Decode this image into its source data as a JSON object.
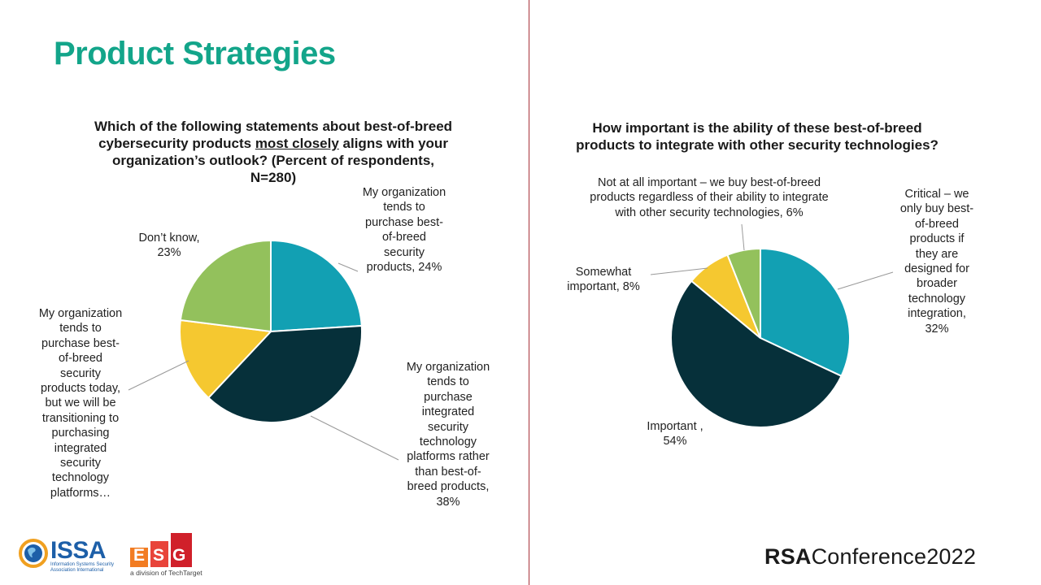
{
  "slide": {
    "title": "Product Strategies"
  },
  "chart_data": [
    {
      "type": "pie",
      "title_parts": [
        "Which of the following statements about best-of-breed cybersecurity products ",
        "most closely",
        " aligns with your organization’s outlook? (Percent of respondents, N=280)"
      ],
      "slices": [
        {
          "label": "My organization tends to purchase best-of-breed security products, 24%",
          "value": 24,
          "color": "#12a0b3"
        },
        {
          "label": "My organization tends to purchase integrated security technology platforms rather than best-of-breed products, 38%",
          "value": 38,
          "color": "#06303a"
        },
        {
          "label": "My organization tends to purchase best-of-breed security products today, but we will be transitioning to purchasing integrated security technology platforms…",
          "value": 15,
          "color": "#f5c830"
        },
        {
          "label": "Don’t know, 23%",
          "value": 23,
          "color": "#93c15c"
        }
      ]
    },
    {
      "type": "pie",
      "title": "How important is the ability of these best-of-breed products to integrate with other security technologies?",
      "slices": [
        {
          "label": "Critical – we only buy best-of-breed products if they are designed for broader technology integration, 32%",
          "value": 32,
          "color": "#12a0b3"
        },
        {
          "label": "Important , 54%",
          "value": 54,
          "color": "#06303a"
        },
        {
          "label": "Somewhat important, 8%",
          "value": 8,
          "color": "#f5c830"
        },
        {
          "label": "Not at all important – we buy best-of-breed products regardless of their ability to integrate with other security technologies, 6%",
          "value": 6,
          "color": "#93c15c"
        }
      ]
    }
  ],
  "labels_display": {
    "c1": [
      "My organization\ntends to\npurchase best-\nof-breed\nsecurity\nproducts, 24%",
      "My organization\ntends to\npurchase\nintegrated\nsecurity\ntechnology\nplatforms rather\nthan best-of-\nbreed products,\n38%",
      "My organization\ntends to\npurchase best-\nof-breed\nsecurity\nproducts today,\nbut we will be\ntransitioning to\npurchasing\nintegrated\nsecurity\ntechnology\nplatforms…",
      "Don’t know,\n23%"
    ],
    "c2": [
      "Critical – we\nonly buy best-\nof-breed\nproducts if\nthey are\ndesigned for\nbroader\ntechnology\nintegration,\n32%",
      "Important ,\n54%",
      "Somewhat\nimportant, 8%",
      "Not at all important – we buy best-of-breed\nproducts regardless of their ability to integrate\nwith other security technologies, 6%"
    ]
  },
  "footer": {
    "issa_logo_text": "ISSA",
    "issa_subtext": "Information Systems Security Association International",
    "esg_logo_text": "ESG",
    "esg_subtext": "a division of TechTarget",
    "rsa_bold": "RSA",
    "rsa_text": "Conference2022"
  }
}
